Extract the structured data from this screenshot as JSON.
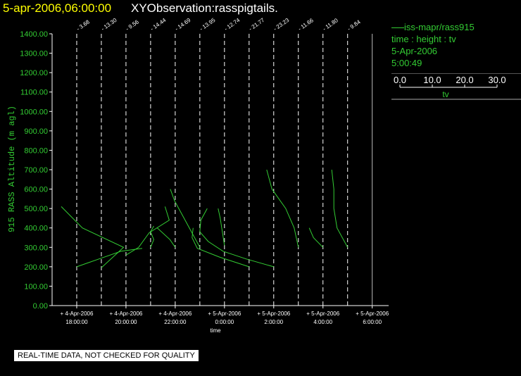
{
  "header": {
    "date_stamp": "5-apr-2006,06:00:00",
    "title": "XYObservation:rasspigtails."
  },
  "legend": {
    "series_name": "iss-mapr/rass915",
    "variables": "time : height : tv",
    "date": "5-Apr-2006",
    "time": "5:00:49",
    "scale_ticks": [
      "0.0",
      "10.0",
      "20.0",
      "30.0"
    ],
    "scale_label": "tv",
    "colors": {
      "text": "#33cc33",
      "rule": "#aaaaaa"
    }
  },
  "footer": {
    "quality_note": "REAL-TIME DATA, NOT CHECKED FOR QUALITY"
  },
  "chart_data": {
    "type": "line",
    "title": "XYObservation:rasspigtails.",
    "xlabel": "time",
    "ylabel": "915 RASS Altitude (m agl)",
    "xlim": [
      "2006-04-04T17:00:00",
      "2006-04-05T06:40:00"
    ],
    "ylim": [
      0,
      1400
    ],
    "y_ticks": [
      "0.00",
      "100.00",
      "200.00",
      "300.00",
      "400.00",
      "500.00",
      "600.00",
      "700.00",
      "800.00",
      "900.00",
      "1000.00",
      "1100.00",
      "1200.00",
      "1300.00",
      "1400.00"
    ],
    "x_ticks": [
      {
        "time": "2006-04-04T18:00:00",
        "date_label": "4-Apr-2006",
        "time_label": "18:00:00"
      },
      {
        "time": "2006-04-04T20:00:00",
        "date_label": "4-Apr-2006",
        "time_label": "20:00:00"
      },
      {
        "time": "2006-04-04T22:00:00",
        "date_label": "4-Apr-2006",
        "time_label": "22:00:00"
      },
      {
        "time": "2006-04-05T00:00:00",
        "date_label": "5-Apr-2006",
        "time_label": "0:00:00"
      },
      {
        "time": "2006-04-05T02:00:00",
        "date_label": "5-Apr-2006",
        "time_label": "2:00:00"
      },
      {
        "time": "2006-04-05T04:00:00",
        "date_label": "5-Apr-2006",
        "time_label": "4:00:00"
      },
      {
        "time": "2006-04-05T06:00:00",
        "date_label": "5-Apr-2006",
        "time_label": "6:00:00"
      }
    ],
    "profiles": [
      {
        "time": "2006-04-04T18:00:00",
        "label": "3.68",
        "points": [
          [
            0,
            200
          ],
          [
            21,
            240
          ],
          [
            42,
            280
          ],
          [
            62,
            295
          ]
        ]
      },
      {
        "time": "2006-04-04T19:00:00",
        "label": "13.30",
        "points": [
          [
            0,
            195
          ],
          [
            21,
            300
          ],
          [
            -18,
            400
          ],
          [
            -38,
            510
          ]
        ]
      },
      {
        "time": "2006-04-04T20:00:00",
        "label": "9.56",
        "points": [
          [
            0,
            260
          ],
          [
            12,
            300
          ],
          [
            22,
            375
          ],
          [
            41,
            440
          ],
          [
            37,
            510
          ]
        ]
      },
      {
        "time": "2006-04-04T21:00:00",
        "label": "14.44",
        "points": [
          [
            0,
            300
          ],
          [
            3,
            340
          ],
          [
            0,
            380
          ],
          [
            3,
            410
          ]
        ]
      },
      {
        "time": "2006-04-04T22:00:00",
        "label": "14.69",
        "points": [
          [
            0,
            300
          ],
          [
            -5,
            340
          ],
          [
            -17,
            400
          ]
        ]
      },
      {
        "time": "2006-04-04T23:00:00",
        "label": "13.95",
        "points": [
          [
            0,
            300
          ],
          [
            -5,
            350
          ],
          [
            -15,
            450
          ],
          [
            -24,
            540
          ],
          [
            -28,
            600
          ]
        ]
      },
      {
        "time": "2006-04-05T00:00:00",
        "label": "12.74",
        "points": [
          [
            0,
            310
          ],
          [
            -2,
            380
          ],
          [
            -4,
            450
          ],
          [
            -6,
            500
          ]
        ]
      },
      {
        "time": "2006-04-05T01:00:00",
        "label": "21.77",
        "points": [
          [
            0,
            200
          ],
          [
            -28,
            250
          ],
          [
            -49,
            295
          ],
          [
            -54,
            350
          ],
          [
            -53,
            400
          ]
        ]
      },
      {
        "time": "2006-04-05T02:00:00",
        "label": "23.23",
        "points": [
          [
            0,
            200
          ],
          [
            -26,
            240
          ],
          [
            -48,
            280
          ],
          [
            -62,
            330
          ],
          [
            -70,
            380
          ],
          [
            -69,
            440
          ],
          [
            -63,
            500
          ]
        ]
      },
      {
        "time": "2006-04-05T03:00:00",
        "label": "11.66",
        "points": [
          [
            0,
            300
          ],
          [
            -4,
            400
          ],
          [
            -12,
            500
          ],
          [
            -25,
            600
          ],
          [
            -30,
            700
          ]
        ]
      },
      {
        "time": "2006-04-05T04:00:00",
        "label": "11.80",
        "points": [
          [
            0,
            300
          ],
          [
            -9,
            350
          ],
          [
            -13,
            400
          ]
        ]
      },
      {
        "time": "2006-04-05T05:00:00",
        "label": "9.84",
        "points": [
          [
            0,
            300
          ],
          [
            -10,
            400
          ],
          [
            -13,
            500
          ],
          [
            -13,
            600
          ],
          [
            -15,
            700
          ]
        ]
      }
    ],
    "series_color": "#33cc33",
    "grid": false
  }
}
